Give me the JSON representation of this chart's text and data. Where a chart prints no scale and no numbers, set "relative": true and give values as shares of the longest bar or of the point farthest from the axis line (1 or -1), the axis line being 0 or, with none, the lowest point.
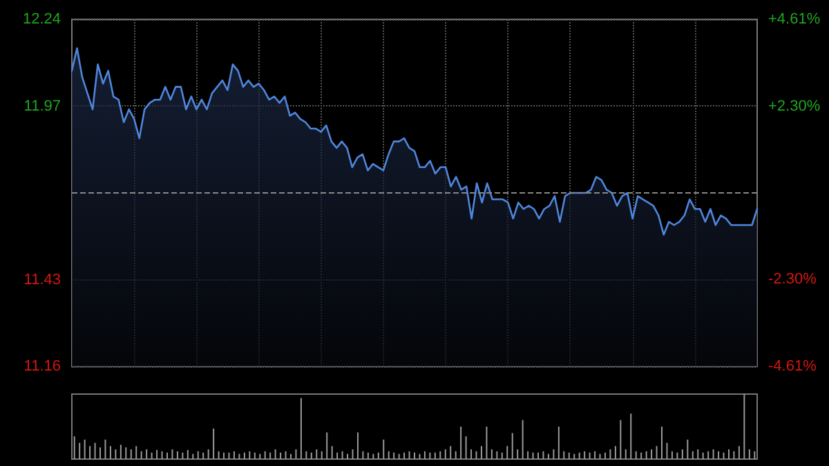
{
  "chart_data": [
    {
      "type": "area",
      "categories": [
        null,
        null,
        null,
        null,
        null,
        null,
        null,
        null,
        null,
        null,
        null,
        null,
        null,
        null,
        null,
        null,
        null,
        null,
        null,
        null,
        null,
        null,
        null,
        null,
        null,
        null,
        null,
        null,
        null,
        null,
        null,
        null,
        null,
        null,
        null,
        null,
        null,
        null,
        null,
        null,
        null,
        null,
        null,
        null,
        null,
        null,
        null,
        null,
        null,
        null,
        null,
        null,
        null,
        null,
        null,
        null,
        null,
        null,
        null,
        null,
        null,
        null,
        null,
        null,
        null,
        null,
        null,
        null,
        null,
        null,
        null,
        null,
        null,
        null,
        null,
        null,
        null,
        null,
        null,
        null,
        null,
        null,
        null,
        null,
        null,
        null,
        null,
        null,
        null,
        null,
        null,
        null,
        null,
        null,
        null,
        null,
        null,
        null,
        null,
        null,
        null,
        null,
        null,
        null,
        null,
        null,
        null,
        null,
        null,
        null,
        null,
        null,
        null,
        null,
        null,
        null,
        null,
        null,
        null,
        null,
        null,
        null,
        null,
        null,
        null,
        null,
        null,
        null,
        null,
        null,
        null,
        null,
        null
      ],
      "series": [
        {
          "color": "#4f86dc",
          "values": [
            12.08,
            12.15,
            12.06,
            12.01,
            11.96,
            12.1,
            12.04,
            12.08,
            12.0,
            11.99,
            11.92,
            11.96,
            11.93,
            11.87,
            11.96,
            11.98,
            11.99,
            11.99,
            12.03,
            11.99,
            12.03,
            12.03,
            11.96,
            12.0,
            11.96,
            11.99,
            11.96,
            12.01,
            12.03,
            12.05,
            12.02,
            12.1,
            12.08,
            12.03,
            12.05,
            12.03,
            12.04,
            12.02,
            11.99,
            12.0,
            11.98,
            12.0,
            11.94,
            11.95,
            11.93,
            11.92,
            11.9,
            11.9,
            11.89,
            11.91,
            11.86,
            11.84,
            11.86,
            11.84,
            11.78,
            11.81,
            11.82,
            11.77,
            11.79,
            11.78,
            11.77,
            11.82,
            11.86,
            11.86,
            11.87,
            11.84,
            11.83,
            11.78,
            11.78,
            11.8,
            11.76,
            11.78,
            11.78,
            11.72,
            11.75,
            11.71,
            11.72,
            11.62,
            11.73,
            11.67,
            11.73,
            11.68,
            11.68,
            11.68,
            11.67,
            11.62,
            11.67,
            11.65,
            11.66,
            11.65,
            11.62,
            11.65,
            11.66,
            11.69,
            11.61,
            11.69,
            11.7,
            11.7,
            11.7,
            11.7,
            11.71,
            11.75,
            11.74,
            11.71,
            11.7,
            11.66,
            11.69,
            11.7,
            11.62,
            11.69,
            11.68,
            11.67,
            11.66,
            11.63,
            11.57,
            11.61,
            11.6,
            11.61,
            11.63,
            11.68,
            11.65,
            11.65,
            11.61,
            11.65,
            11.6,
            11.63,
            11.62,
            11.6,
            11.6,
            11.6,
            11.6,
            11.6,
            11.65
          ]
        }
      ],
      "ylim": [
        11.16,
        12.24
      ],
      "yticks": [
        11.16,
        11.43,
        11.97,
        12.24
      ],
      "y2lim": [
        -4.61,
        4.61
      ],
      "y2ticks": [
        {
          "value": -4.61,
          "label": "-4.61%"
        },
        {
          "value": -2.3,
          "label": "-2.30%"
        },
        {
          "value": 2.3,
          "label": "+2.30%"
        },
        {
          "value": 4.61,
          "label": "+4.61%"
        }
      ],
      "ref_lines": [
        {
          "axis": "y",
          "value": 11.7,
          "line_style": "dashed",
          "color": "#888888"
        }
      ],
      "grid": true,
      "line_style": "solid"
    },
    {
      "type": "bar",
      "relative": true,
      "categories": [
        null,
        null,
        null,
        null,
        null,
        null,
        null,
        null,
        null,
        null,
        null,
        null,
        null,
        null,
        null,
        null,
        null,
        null,
        null,
        null,
        null,
        null,
        null,
        null,
        null,
        null,
        null,
        null,
        null,
        null,
        null,
        null,
        null,
        null,
        null,
        null,
        null,
        null,
        null,
        null,
        null,
        null,
        null,
        null,
        null,
        null,
        null,
        null,
        null,
        null,
        null,
        null,
        null,
        null,
        null,
        null,
        null,
        null,
        null,
        null,
        null,
        null,
        null,
        null,
        null,
        null,
        null,
        null,
        null,
        null,
        null,
        null,
        null,
        null,
        null,
        null,
        null,
        null,
        null,
        null,
        null,
        null,
        null,
        null,
        null,
        null,
        null,
        null,
        null,
        null,
        null,
        null,
        null,
        null,
        null,
        null,
        null,
        null,
        null,
        null,
        null,
        null,
        null,
        null,
        null,
        null,
        null,
        null,
        null,
        null,
        null,
        null,
        null,
        null,
        null,
        null,
        null,
        null,
        null,
        null,
        null,
        null,
        null,
        null,
        null,
        null,
        null,
        null,
        null,
        null,
        null,
        null,
        null
      ],
      "series": [
        {
          "color": "#9a9a9a",
          "values": [
            0.35,
            0.25,
            0.3,
            0.2,
            0.25,
            0.18,
            0.3,
            0.2,
            0.15,
            0.22,
            0.18,
            0.15,
            0.2,
            0.12,
            0.15,
            0.1,
            0.14,
            0.12,
            0.1,
            0.15,
            0.12,
            0.1,
            0.14,
            0.08,
            0.12,
            0.1,
            0.15,
            0.47,
            0.12,
            0.1,
            0.1,
            0.12,
            0.08,
            0.1,
            0.12,
            0.1,
            0.08,
            0.12,
            0.1,
            0.15,
            0.1,
            0.12,
            0.08,
            0.15,
            0.94,
            0.12,
            0.1,
            0.15,
            0.12,
            0.41,
            0.2,
            0.1,
            0.12,
            0.08,
            0.15,
            0.41,
            0.12,
            0.1,
            0.08,
            0.1,
            0.3,
            0.12,
            0.1,
            0.08,
            0.1,
            0.12,
            0.1,
            0.08,
            0.12,
            0.1,
            0.1,
            0.12,
            0.15,
            0.2,
            0.12,
            0.5,
            0.35,
            0.15,
            0.12,
            0.2,
            0.5,
            0.15,
            0.12,
            0.1,
            0.2,
            0.4,
            0.15,
            0.6,
            0.12,
            0.1,
            0.1,
            0.12,
            0.08,
            0.15,
            0.5,
            0.12,
            0.1,
            0.08,
            0.1,
            0.12,
            0.1,
            0.12,
            0.08,
            0.1,
            0.15,
            0.2,
            0.6,
            0.15,
            0.7,
            0.12,
            0.1,
            0.12,
            0.15,
            0.2,
            0.5,
            0.25,
            0.12,
            0.1,
            0.15,
            0.3,
            0.12,
            0.15,
            0.1,
            0.12,
            0.15,
            0.12,
            0.1,
            0.15,
            0.12,
            0.2,
            1.0,
            0.15,
            0.12
          ]
        }
      ]
    }
  ]
}
